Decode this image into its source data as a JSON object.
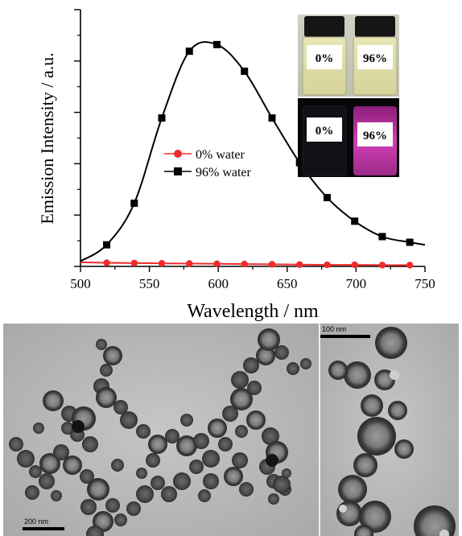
{
  "chart_data": {
    "type": "line",
    "title": "",
    "xlabel": "Wavelength / nm",
    "ylabel": "Emission Intensity / a.u.",
    "xlim": [
      500,
      750
    ],
    "ylim": [
      0,
      5
    ],
    "xticks": [
      500,
      550,
      600,
      650,
      700,
      750
    ],
    "grid": false,
    "legend_position": "center-left",
    "series": [
      {
        "name": "0% water",
        "color": "#ee2b2b",
        "marker": "circle",
        "x": [
          500,
          519,
          539,
          559,
          579,
          599,
          619,
          639,
          659,
          679,
          699,
          719,
          739
        ],
        "y": [
          0.08,
          0.07,
          0.065,
          0.06,
          0.055,
          0.05,
          0.045,
          0.04,
          0.035,
          0.03,
          0.03,
          0.025,
          0.025
        ]
      },
      {
        "name": "96% water",
        "color": "#000000",
        "marker": "square",
        "x": [
          500,
          519,
          539,
          559,
          579,
          599,
          619,
          639,
          659,
          679,
          699,
          719,
          739,
          750
        ],
        "y": [
          0.1,
          0.42,
          1.23,
          2.89,
          4.19,
          4.32,
          3.8,
          2.89,
          2.02,
          1.34,
          0.88,
          0.58,
          0.47,
          0.42
        ]
      }
    ]
  },
  "inset": {
    "vials_daylight": [
      "0%",
      "96%"
    ],
    "vials_uv": [
      "0%",
      "96%"
    ]
  },
  "tem": {
    "left_scale": "200 nm",
    "right_scale": "100 nm"
  }
}
